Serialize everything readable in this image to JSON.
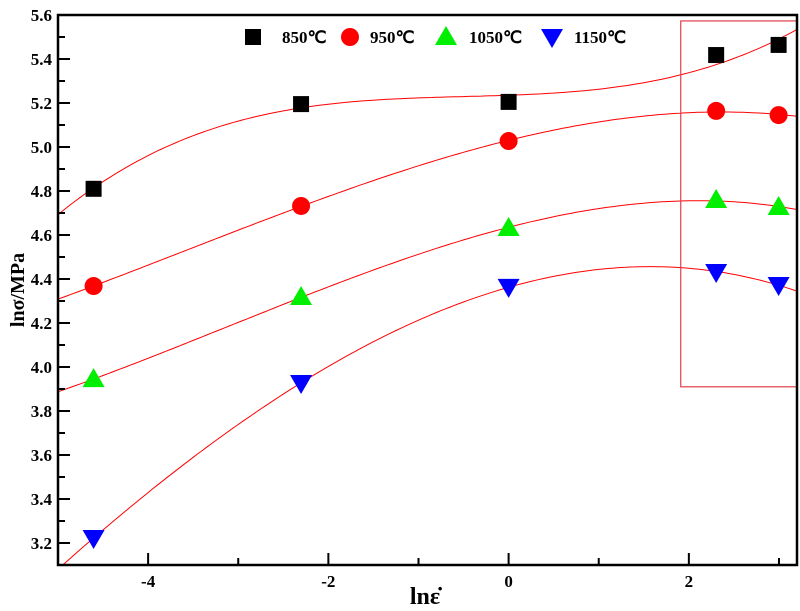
{
  "chart_data": {
    "type": "scatter",
    "xlabel": "lnε̇",
    "ylabel": "lnσ/MPa",
    "xlim": [
      -5,
      3.2
    ],
    "ylim": [
      3.1,
      5.6
    ],
    "xticks": [
      -4,
      -2,
      0,
      2
    ],
    "xtick_labels": [
      "-4",
      "-2",
      "0",
      "2"
    ],
    "yticks": [
      3.2,
      3.4,
      3.6,
      3.8,
      4.0,
      4.2,
      4.4,
      4.6,
      4.8,
      5.0,
      5.2,
      5.4,
      5.6
    ],
    "ytick_labels": [
      "3.2",
      "3.4",
      "3.6",
      "3.8",
      "4.0",
      "4.2",
      "4.4",
      "4.6",
      "4.8",
      "5.0",
      "5.2",
      "5.4",
      "5.6"
    ],
    "grid": false,
    "legend_position": "top",
    "x": [
      -4.605,
      -2.303,
      0,
      2.303,
      2.996
    ],
    "series": [
      {
        "name": "850℃",
        "marker": "square",
        "color": "#000000",
        "values": [
          4.81,
          5.195,
          5.205,
          5.418,
          5.464
        ]
      },
      {
        "name": "950℃",
        "marker": "circle",
        "color": "#ff0000",
        "values": [
          4.368,
          4.732,
          5.027,
          5.164,
          5.145
        ]
      },
      {
        "name": "1050℃",
        "marker": "triangle-up",
        "color": "#00ee00",
        "values": [
          3.945,
          4.318,
          4.632,
          4.759,
          4.727
        ]
      },
      {
        "name": "1150℃",
        "marker": "triangle-down",
        "color": "#0000ff",
        "values": [
          3.223,
          3.927,
          4.364,
          4.432,
          4.373
        ]
      }
    ],
    "fit": {
      "type": "cubic polynomial",
      "color": "#ff0000"
    },
    "highlight_box": {
      "x": [
        1.91,
        3.2
      ],
      "y": [
        3.91,
        5.573
      ],
      "color": "#e0404a"
    }
  }
}
